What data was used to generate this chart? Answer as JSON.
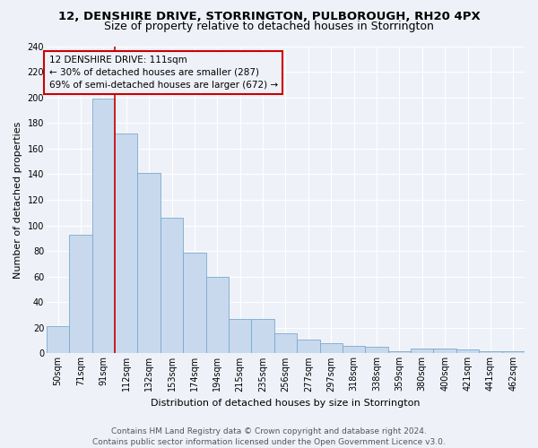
{
  "title": "12, DENSHIRE DRIVE, STORRINGTON, PULBOROUGH, RH20 4PX",
  "subtitle": "Size of property relative to detached houses in Storrington",
  "xlabel": "Distribution of detached houses by size in Storrington",
  "ylabel": "Number of detached properties",
  "categories": [
    "50sqm",
    "71sqm",
    "91sqm",
    "112sqm",
    "132sqm",
    "153sqm",
    "174sqm",
    "194sqm",
    "215sqm",
    "235sqm",
    "256sqm",
    "277sqm",
    "297sqm",
    "318sqm",
    "338sqm",
    "359sqm",
    "380sqm",
    "400sqm",
    "421sqm",
    "441sqm",
    "462sqm"
  ],
  "values": [
    21,
    93,
    199,
    172,
    141,
    106,
    79,
    60,
    27,
    27,
    16,
    11,
    8,
    6,
    5,
    2,
    4,
    4,
    3,
    2,
    2
  ],
  "bar_color": "#c8d9ee",
  "bar_edge_color": "#7aaacc",
  "annotation_line1": "12 DENSHIRE DRIVE: 111sqm",
  "annotation_line2": "← 30% of detached houses are smaller (287)",
  "annotation_line3": "69% of semi-detached houses are larger (672) →",
  "annotation_box_color": "#cc0000",
  "vline_x": 2.5,
  "ylim": [
    0,
    240
  ],
  "yticks": [
    0,
    20,
    40,
    60,
    80,
    100,
    120,
    140,
    160,
    180,
    200,
    220,
    240
  ],
  "footer1": "Contains HM Land Registry data © Crown copyright and database right 2024.",
  "footer2": "Contains public sector information licensed under the Open Government Licence v3.0.",
  "background_color": "#eef2f8",
  "grid_color": "#ffffff",
  "title_fontsize": 9.5,
  "subtitle_fontsize": 9,
  "axis_label_fontsize": 8,
  "tick_fontsize": 7,
  "footer_fontsize": 6.5,
  "annotation_fontsize": 7.5
}
